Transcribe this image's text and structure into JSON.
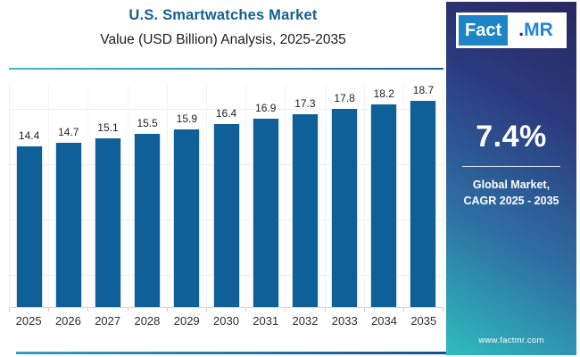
{
  "header": {
    "title": "U.S. Smartwatches Market",
    "subtitle": "Value (USD Billion) Analysis, 2025-2035"
  },
  "logo": {
    "fact": "Fact",
    "dot": ".",
    "mr": "MR"
  },
  "sidebar": {
    "cagr_value": "7.4%",
    "caption_line1": "Global Market,",
    "caption_line2": "CAGR 2025 - 2035",
    "website": "www.factmr.com"
  },
  "chart_data": {
    "type": "bar",
    "title": "U.S. Smartwatches Market",
    "subtitle": "Value (USD Billion) Analysis, 2025-2035",
    "categories": [
      "2025",
      "2026",
      "2027",
      "2028",
      "2029",
      "2030",
      "2031",
      "2032",
      "2033",
      "2034",
      "2035"
    ],
    "values": [
      14.4,
      14.7,
      15.1,
      15.5,
      15.9,
      16.4,
      16.9,
      17.3,
      17.8,
      18.2,
      18.7
    ],
    "xlabel": "",
    "ylabel": "",
    "ylim": [
      0,
      20
    ],
    "grid": "faint horizontal and vertical gridlines, no y tick labels",
    "legend": "none",
    "bar_color": "#0f5f99",
    "value_labels": "above each bar"
  },
  "colors": {
    "title_blue": "#155f92",
    "bar_blue": "#0f5f99",
    "sidebar_navy": "#29285f",
    "sidebar_teal": "#2fbdbd",
    "divider_teal": "#45b8cd",
    "divider_blue": "#1a5fa0"
  }
}
